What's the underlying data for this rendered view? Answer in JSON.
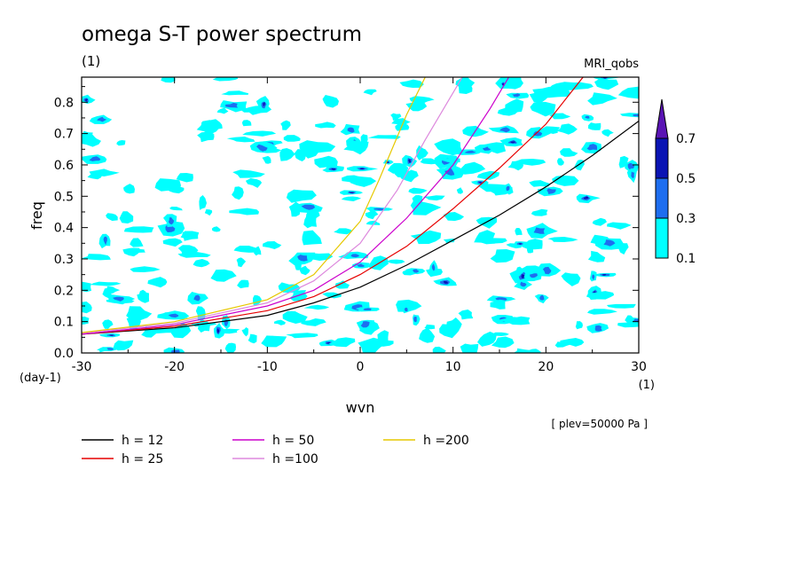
{
  "chart_data": {
    "type": "contour",
    "title": "omega S-T power spectrum",
    "subtitle_left": "(1)",
    "subtitle_right": "MRI_qobs",
    "xlabel": "wvn",
    "ylabel": "freq",
    "x_unit": "(1)",
    "y_unit": "(day-1)",
    "note": "[ plev=50000 Pa ]",
    "xlim": [
      -30,
      30
    ],
    "ylim": [
      0,
      0.88
    ],
    "xticks": [
      -30,
      -20,
      -10,
      0,
      10,
      20,
      30
    ],
    "yticks": [
      0.0,
      0.1,
      0.2,
      0.3,
      0.4,
      0.5,
      0.6,
      0.7,
      0.8
    ],
    "xtick_labels": [
      "-30",
      "-20",
      "-10",
      "0",
      "10",
      "20",
      "30"
    ],
    "ytick_labels": [
      "0.0",
      "0.1",
      "0.2",
      "0.3",
      "0.4",
      "0.5",
      "0.6",
      "0.7",
      "0.8"
    ],
    "colorbar": {
      "levels": [
        0.1,
        0.3,
        0.5,
        0.7
      ],
      "labels": [
        "0.1",
        "0.3",
        "0.5",
        "0.7"
      ],
      "colors": [
        "#00ffff",
        "#1e6ef0",
        "#0a14b4",
        "#5a14b4"
      ],
      "extend": "max"
    },
    "contour_color_main": "#00ffff",
    "series": [
      {
        "name": "h = 12",
        "color": "#000000",
        "points": [
          [
            -30,
            0.06
          ],
          [
            -20,
            0.08
          ],
          [
            -10,
            0.12
          ],
          [
            -5,
            0.16
          ],
          [
            0,
            0.21
          ],
          [
            5,
            0.28
          ],
          [
            10,
            0.36
          ],
          [
            15,
            0.44
          ],
          [
            20,
            0.53
          ],
          [
            25,
            0.63
          ],
          [
            30,
            0.74
          ]
        ]
      },
      {
        "name": "h = 25",
        "color": "#e60000",
        "points": [
          [
            -30,
            0.06
          ],
          [
            -20,
            0.085
          ],
          [
            -10,
            0.135
          ],
          [
            -5,
            0.18
          ],
          [
            0,
            0.25
          ],
          [
            5,
            0.34
          ],
          [
            10,
            0.46
          ],
          [
            15,
            0.59
          ],
          [
            20,
            0.73
          ],
          [
            24,
            0.88
          ]
        ]
      },
      {
        "name": "h = 50",
        "color": "#cc00cc",
        "points": [
          [
            -30,
            0.06
          ],
          [
            -20,
            0.09
          ],
          [
            -10,
            0.15
          ],
          [
            -5,
            0.2
          ],
          [
            0,
            0.29
          ],
          [
            5,
            0.43
          ],
          [
            10,
            0.6
          ],
          [
            14,
            0.78
          ],
          [
            16,
            0.88
          ]
        ]
      },
      {
        "name": "h =100",
        "color": "#dd88dd",
        "points": [
          [
            -30,
            0.063
          ],
          [
            -20,
            0.095
          ],
          [
            -10,
            0.16
          ],
          [
            -5,
            0.23
          ],
          [
            0,
            0.35
          ],
          [
            4,
            0.52
          ],
          [
            7,
            0.68
          ],
          [
            11,
            0.88
          ]
        ]
      },
      {
        "name": "h =200",
        "color": "#e6c800",
        "points": [
          [
            -30,
            0.065
          ],
          [
            -20,
            0.1
          ],
          [
            -10,
            0.17
          ],
          [
            -5,
            0.25
          ],
          [
            0,
            0.42
          ],
          [
            2,
            0.55
          ],
          [
            5,
            0.76
          ],
          [
            7,
            0.88
          ]
        ]
      }
    ]
  }
}
